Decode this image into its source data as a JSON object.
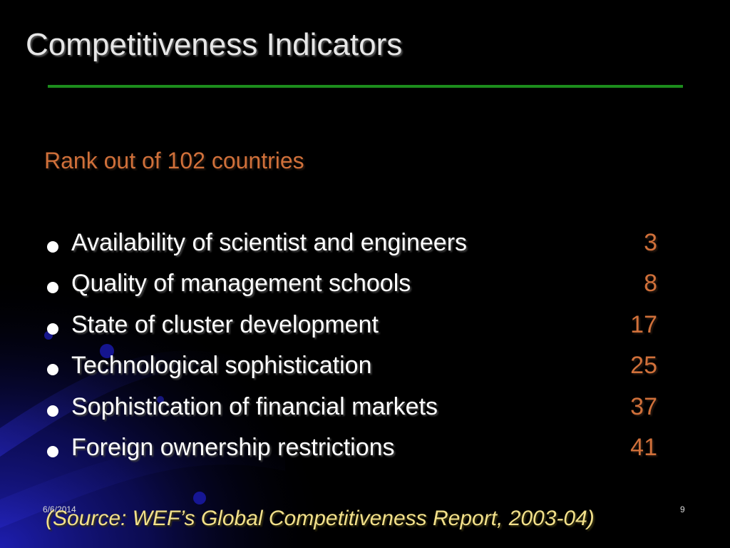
{
  "slide": {
    "title": "Competitiveness Indicators",
    "subtitle": "Rank out of 102 countries",
    "indicators": [
      {
        "label": "Availability of scientist and engineers",
        "rank": "3"
      },
      {
        "label": "Quality of management schools",
        "rank": "8"
      },
      {
        "label": "State of cluster development",
        "rank": "17"
      },
      {
        "label": "Technological sophistication",
        "rank": "25"
      },
      {
        "label": "Sophistication of financial markets",
        "rank": "37"
      },
      {
        "label": "Foreign ownership restrictions",
        "rank": "41"
      }
    ],
    "source": "(Source: WEF’s Global Competitiveness Report, 2003-04)",
    "date": "6/6/2014",
    "page_number": "9"
  },
  "colors": {
    "background": "#000000",
    "title": "#e6e6e6",
    "rule": "#1c8c1c",
    "accent": "#d0703a",
    "body_text": "#ffffff",
    "source": "#f2e08a",
    "decor_blue": "#1a1aa8"
  },
  "icons": {
    "bullet": "bullet-dot-icon"
  }
}
